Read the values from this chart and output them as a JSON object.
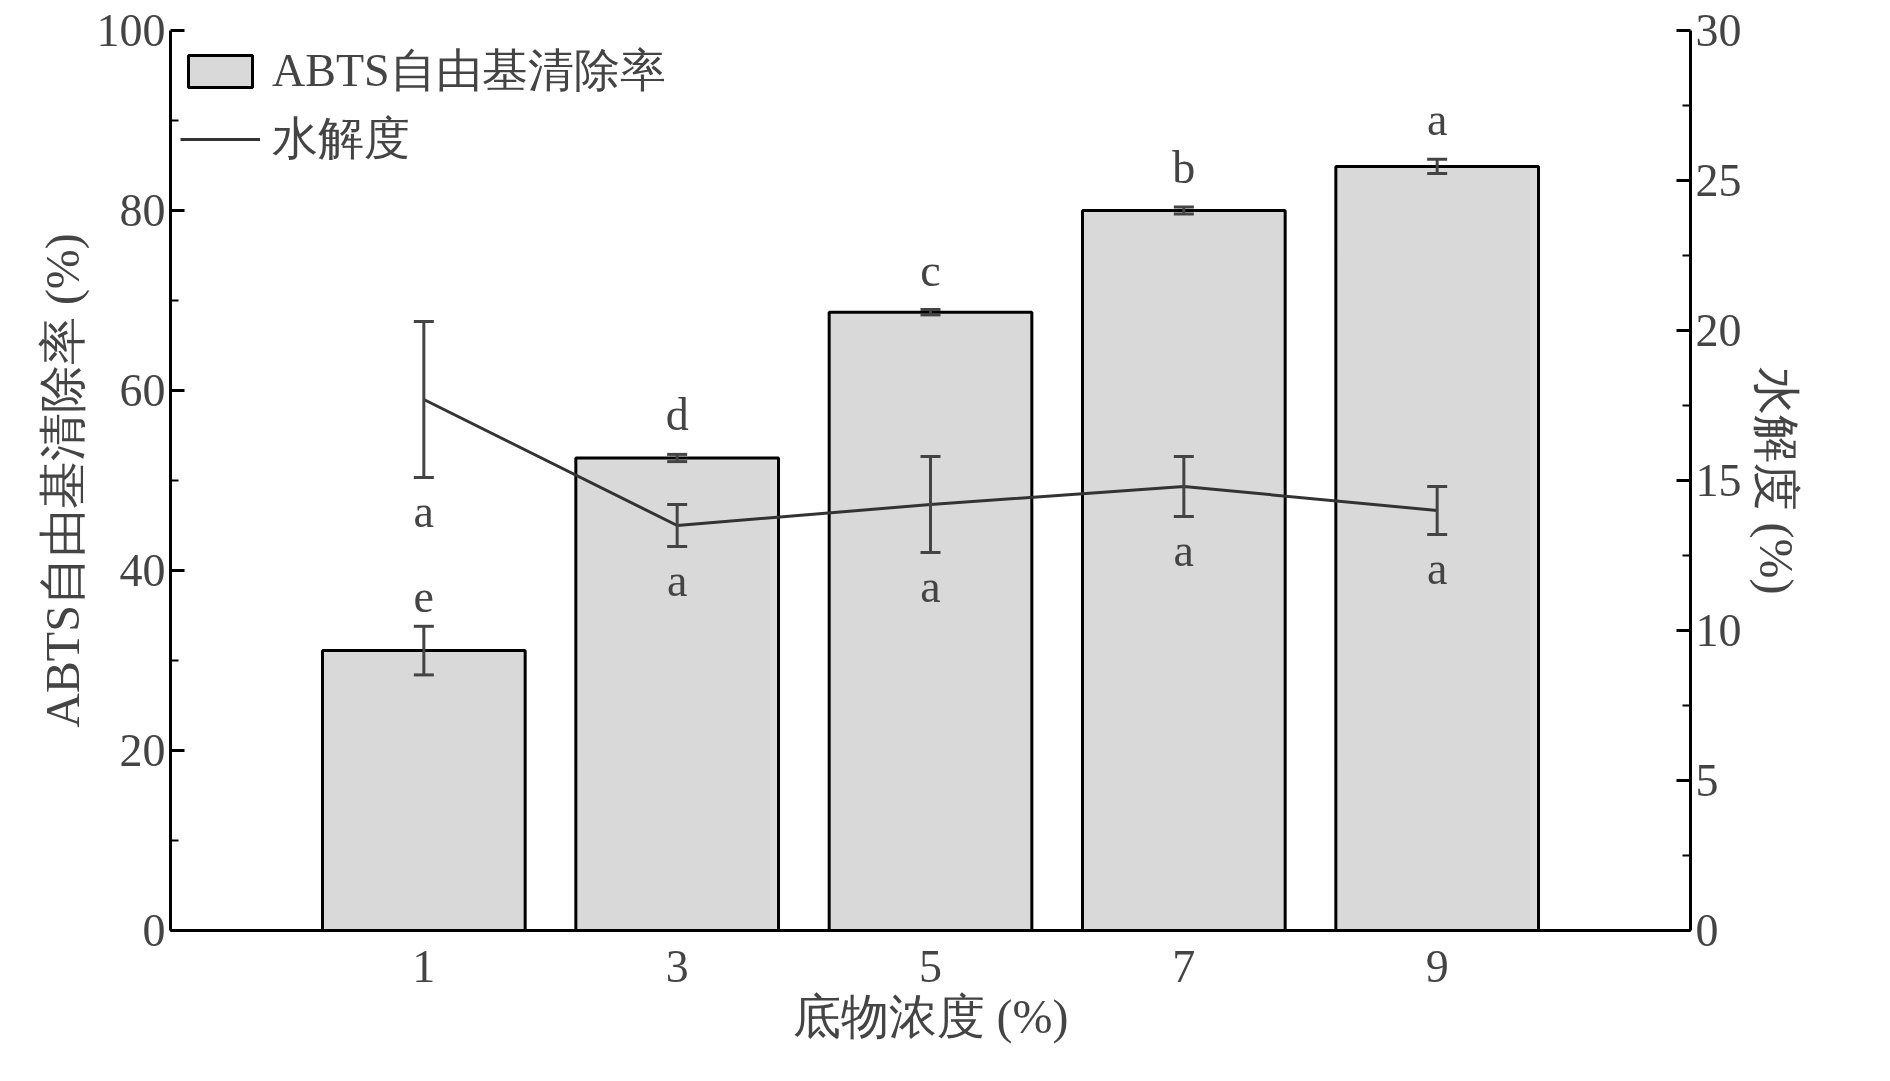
{
  "chart_data": {
    "type": "bar",
    "xlabel": "底物浓度 (%)",
    "ylabel": "ABTS自由基清除率 (%)",
    "y2label": "水解度 (%)",
    "categories": [
      "1",
      "3",
      "5",
      "7",
      "9"
    ],
    "series": [
      {
        "name": "ABTS自由基清除率",
        "color": "#d9d9d9",
        "values": [
          31.1,
          52.5,
          68.7,
          80.0,
          84.9
        ],
        "errors": [
          2.7,
          0.4,
          0.3,
          0.4,
          0.8
        ]
      },
      {
        "name": "水解度",
        "type": "line",
        "axis": "y2",
        "color": "#333333",
        "values": [
          17.7,
          13.5,
          14.2,
          14.8,
          14.0
        ],
        "errors": [
          2.6,
          0.7,
          1.6,
          1.0,
          0.8
        ]
      }
    ],
    "ylim": [
      0,
      100
    ],
    "yticks": [
      0,
      20,
      40,
      60,
      80,
      100
    ],
    "y2lim": [
      0,
      30
    ],
    "y2ticks": [
      0,
      5,
      10,
      15,
      20,
      25,
      30
    ],
    "legend": "top left",
    "grid": false,
    "marker": "none",
    "line_style": "solid",
    "annotations": [
      "e",
      "d",
      "c",
      "b",
      "a",
      "a",
      "a",
      "a",
      "a",
      "a"
    ]
  }
}
